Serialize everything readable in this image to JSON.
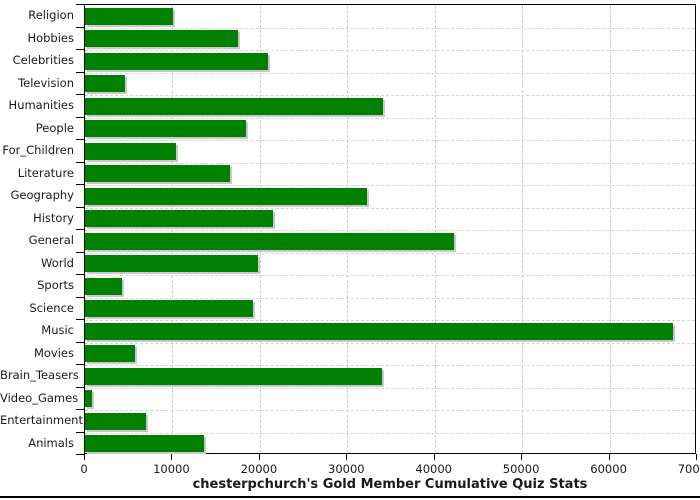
{
  "chart_data": {
    "type": "bar",
    "orientation": "horizontal",
    "title": "chesterpchurch's Gold Member Cumulative Quiz Stats",
    "categories": [
      "Religion",
      "Hobbies",
      "Celebrities",
      "Television",
      "Humanities",
      "People",
      "For_Children",
      "Literature",
      "Geography",
      "History",
      "General",
      "World",
      "Sports",
      "Science",
      "Music",
      "Movies",
      "Brain_Teasers",
      "Video_Games",
      "Entertainment",
      "Animals"
    ],
    "values": [
      10100,
      17500,
      20900,
      4600,
      34100,
      18400,
      10400,
      16600,
      32300,
      21500,
      42200,
      19800,
      4200,
      19200,
      67300,
      5700,
      34000,
      850,
      7000,
      13600
    ],
    "xlabel": "",
    "ylabel": "",
    "xlim": [
      0,
      70000
    ],
    "xticks": [
      0,
      10000,
      20000,
      30000,
      40000,
      50000,
      60000,
      70000
    ],
    "grid": "dashed",
    "legend_position": "none",
    "colors": {
      "bar": "#008000",
      "bar_shadow": "#c9c9c9",
      "grid_vertical": "#cccccc",
      "grid_horizontal": "#d4d4d4",
      "axis": "#000000",
      "text": "#1a1a1a",
      "background": "#ffffff"
    }
  }
}
